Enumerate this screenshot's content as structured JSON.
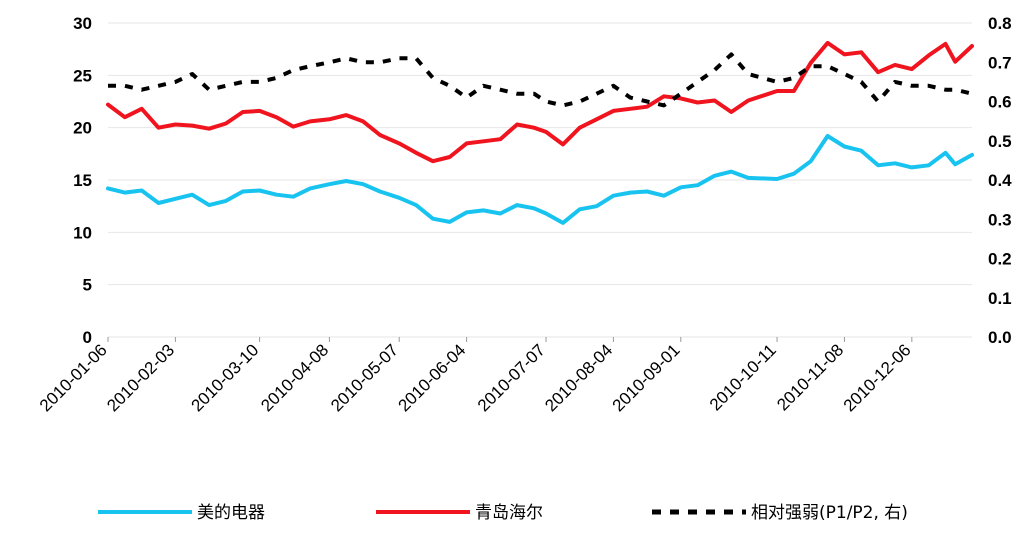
{
  "chart_data": {
    "type": "line",
    "title": "",
    "xlabel": "",
    "ylabel": "",
    "x_tick_labels": [
      "2010-01-06",
      "2010-02-03",
      "2010-03-10",
      "2010-04-08",
      "2010-05-07",
      "2010-06-04",
      "2010-07-07",
      "2010-08-04",
      "2010-09-01",
      "2010-10-11",
      "2010-11-08",
      "2010-12-06"
    ],
    "x_range": [
      "2010-01-06",
      "2010-12-31"
    ],
    "y_left": {
      "lim": [
        0,
        30
      ],
      "ticks": [
        "0",
        "5",
        "10",
        "15",
        "20",
        "25",
        "30"
      ]
    },
    "y_right": {
      "lim": [
        0,
        0.8
      ],
      "ticks": [
        "0.0",
        "0.1",
        "0.2",
        "0.3",
        "0.4",
        "0.5",
        "0.6",
        "0.7",
        "0.8"
      ]
    },
    "grid": true,
    "legend_placement": "bottom",
    "series": [
      {
        "name": "美的电器",
        "axis": "left",
        "color": "#19c3f0",
        "style": "solid",
        "points": [
          [
            "2010-01-06",
            14.2
          ],
          [
            "2010-01-13",
            13.8
          ],
          [
            "2010-01-20",
            14.0
          ],
          [
            "2010-01-27",
            12.8
          ],
          [
            "2010-02-03",
            13.2
          ],
          [
            "2010-02-10",
            13.6
          ],
          [
            "2010-02-17",
            12.6
          ],
          [
            "2010-02-24",
            13.0
          ],
          [
            "2010-03-03",
            13.9
          ],
          [
            "2010-03-10",
            14.0
          ],
          [
            "2010-03-17",
            13.6
          ],
          [
            "2010-03-24",
            13.4
          ],
          [
            "2010-03-31",
            14.2
          ],
          [
            "2010-04-08",
            14.6
          ],
          [
            "2010-04-15",
            14.9
          ],
          [
            "2010-04-22",
            14.6
          ],
          [
            "2010-04-29",
            13.9
          ],
          [
            "2010-05-07",
            13.3
          ],
          [
            "2010-05-14",
            12.6
          ],
          [
            "2010-05-21",
            11.3
          ],
          [
            "2010-05-28",
            11.0
          ],
          [
            "2010-06-04",
            11.9
          ],
          [
            "2010-06-11",
            12.1
          ],
          [
            "2010-06-18",
            11.8
          ],
          [
            "2010-06-25",
            12.6
          ],
          [
            "2010-07-02",
            12.3
          ],
          [
            "2010-07-07",
            11.8
          ],
          [
            "2010-07-14",
            10.9
          ],
          [
            "2010-07-21",
            12.2
          ],
          [
            "2010-07-28",
            12.5
          ],
          [
            "2010-08-04",
            13.5
          ],
          [
            "2010-08-11",
            13.8
          ],
          [
            "2010-08-18",
            13.9
          ],
          [
            "2010-08-25",
            13.5
          ],
          [
            "2010-09-01",
            14.3
          ],
          [
            "2010-09-08",
            14.5
          ],
          [
            "2010-09-15",
            15.4
          ],
          [
            "2010-09-22",
            15.8
          ],
          [
            "2010-09-29",
            15.2
          ],
          [
            "2010-10-11",
            15.1
          ],
          [
            "2010-10-18",
            15.6
          ],
          [
            "2010-10-25",
            16.8
          ],
          [
            "2010-11-01",
            19.2
          ],
          [
            "2010-11-08",
            18.2
          ],
          [
            "2010-11-15",
            17.8
          ],
          [
            "2010-11-22",
            16.4
          ],
          [
            "2010-11-29",
            16.6
          ],
          [
            "2010-12-06",
            16.2
          ],
          [
            "2010-12-13",
            16.4
          ],
          [
            "2010-12-20",
            17.6
          ],
          [
            "2010-12-24",
            16.5
          ],
          [
            "2010-12-31",
            17.4
          ]
        ]
      },
      {
        "name": "青岛海尔",
        "axis": "left",
        "color": "#f0141e",
        "style": "solid",
        "points": [
          [
            "2010-01-06",
            22.2
          ],
          [
            "2010-01-13",
            21.0
          ],
          [
            "2010-01-20",
            21.8
          ],
          [
            "2010-01-27",
            20.0
          ],
          [
            "2010-02-03",
            20.3
          ],
          [
            "2010-02-10",
            20.2
          ],
          [
            "2010-02-17",
            19.9
          ],
          [
            "2010-02-24",
            20.4
          ],
          [
            "2010-03-03",
            21.5
          ],
          [
            "2010-03-10",
            21.6
          ],
          [
            "2010-03-17",
            21.0
          ],
          [
            "2010-03-24",
            20.1
          ],
          [
            "2010-03-31",
            20.6
          ],
          [
            "2010-04-08",
            20.8
          ],
          [
            "2010-04-15",
            21.2
          ],
          [
            "2010-04-22",
            20.6
          ],
          [
            "2010-04-29",
            19.3
          ],
          [
            "2010-05-07",
            18.5
          ],
          [
            "2010-05-14",
            17.6
          ],
          [
            "2010-05-21",
            16.8
          ],
          [
            "2010-05-28",
            17.2
          ],
          [
            "2010-06-04",
            18.5
          ],
          [
            "2010-06-11",
            18.7
          ],
          [
            "2010-06-18",
            18.9
          ],
          [
            "2010-06-25",
            20.3
          ],
          [
            "2010-07-02",
            20.0
          ],
          [
            "2010-07-07",
            19.6
          ],
          [
            "2010-07-14",
            18.4
          ],
          [
            "2010-07-21",
            20.0
          ],
          [
            "2010-07-28",
            20.8
          ],
          [
            "2010-08-04",
            21.6
          ],
          [
            "2010-08-11",
            21.8
          ],
          [
            "2010-08-18",
            22.0
          ],
          [
            "2010-08-25",
            23.0
          ],
          [
            "2010-09-01",
            22.8
          ],
          [
            "2010-09-08",
            22.4
          ],
          [
            "2010-09-15",
            22.6
          ],
          [
            "2010-09-22",
            21.5
          ],
          [
            "2010-09-29",
            22.6
          ],
          [
            "2010-10-11",
            23.5
          ],
          [
            "2010-10-18",
            23.5
          ],
          [
            "2010-10-25",
            26.2
          ],
          [
            "2010-11-01",
            28.1
          ],
          [
            "2010-11-08",
            27.0
          ],
          [
            "2010-11-15",
            27.2
          ],
          [
            "2010-11-22",
            25.3
          ],
          [
            "2010-11-29",
            26.0
          ],
          [
            "2010-12-06",
            25.6
          ],
          [
            "2010-12-13",
            26.9
          ],
          [
            "2010-12-20",
            28.0
          ],
          [
            "2010-12-24",
            26.3
          ],
          [
            "2010-12-31",
            27.8
          ]
        ]
      },
      {
        "name": "相对强弱(P1/P2, 右)",
        "axis": "right",
        "color": "#000000",
        "style": "dashed",
        "points": [
          [
            "2010-01-06",
            0.64
          ],
          [
            "2010-01-13",
            0.64
          ],
          [
            "2010-01-20",
            0.63
          ],
          [
            "2010-01-27",
            0.64
          ],
          [
            "2010-02-03",
            0.65
          ],
          [
            "2010-02-10",
            0.67
          ],
          [
            "2010-02-17",
            0.63
          ],
          [
            "2010-02-24",
            0.64
          ],
          [
            "2010-03-03",
            0.65
          ],
          [
            "2010-03-10",
            0.65
          ],
          [
            "2010-03-17",
            0.66
          ],
          [
            "2010-03-24",
            0.68
          ],
          [
            "2010-03-31",
            0.69
          ],
          [
            "2010-04-08",
            0.7
          ],
          [
            "2010-04-15",
            0.71
          ],
          [
            "2010-04-22",
            0.7
          ],
          [
            "2010-04-29",
            0.7
          ],
          [
            "2010-05-07",
            0.71
          ],
          [
            "2010-05-14",
            0.71
          ],
          [
            "2010-05-21",
            0.66
          ],
          [
            "2010-05-28",
            0.64
          ],
          [
            "2010-06-04",
            0.61
          ],
          [
            "2010-06-11",
            0.64
          ],
          [
            "2010-06-18",
            0.63
          ],
          [
            "2010-06-25",
            0.62
          ],
          [
            "2010-07-02",
            0.62
          ],
          [
            "2010-07-07",
            0.6
          ],
          [
            "2010-07-14",
            0.59
          ],
          [
            "2010-07-21",
            0.6
          ],
          [
            "2010-07-28",
            0.62
          ],
          [
            "2010-08-04",
            0.64
          ],
          [
            "2010-08-11",
            0.61
          ],
          [
            "2010-08-18",
            0.6
          ],
          [
            "2010-08-25",
            0.59
          ],
          [
            "2010-09-01",
            0.62
          ],
          [
            "2010-09-08",
            0.65
          ],
          [
            "2010-09-15",
            0.68
          ],
          [
            "2010-09-22",
            0.72
          ],
          [
            "2010-09-29",
            0.67
          ],
          [
            "2010-10-11",
            0.65
          ],
          [
            "2010-10-18",
            0.66
          ],
          [
            "2010-10-25",
            0.69
          ],
          [
            "2010-11-01",
            0.69
          ],
          [
            "2010-11-08",
            0.67
          ],
          [
            "2010-11-15",
            0.65
          ],
          [
            "2010-11-22",
            0.6
          ],
          [
            "2010-11-29",
            0.65
          ],
          [
            "2010-12-06",
            0.64
          ],
          [
            "2010-12-13",
            0.64
          ],
          [
            "2010-12-20",
            0.63
          ],
          [
            "2010-12-24",
            0.63
          ],
          [
            "2010-12-31",
            0.62
          ]
        ]
      }
    ]
  }
}
